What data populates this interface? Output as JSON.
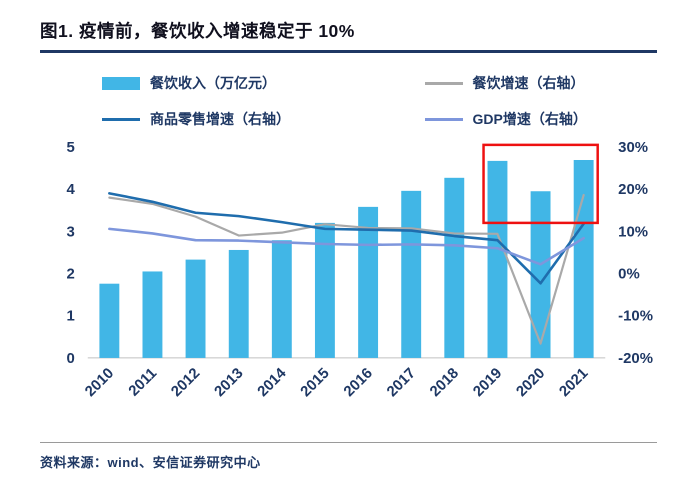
{
  "title": "图1. 疫情前，餐饮收入增速稳定于 10%",
  "source": "资料来源：wind、安信证券研究中心",
  "colors": {
    "bar": "#41b6e6",
    "catering": "#a9a9a9",
    "retail": "#1f6dad",
    "gdp": "#7e96dc",
    "annotation": "#ee1111",
    "axis_text": "#1f3864"
  },
  "legend": [
    {
      "key": "catering-revenue",
      "label": "餐饮收入（万亿元）",
      "type": "bar",
      "color_key": "bar"
    },
    {
      "key": "catering-growth",
      "label": "餐饮增速（右轴）",
      "type": "line",
      "color_key": "catering"
    },
    {
      "key": "retail-growth",
      "label": "商品零售增速（右轴）",
      "type": "line",
      "color_key": "retail"
    },
    {
      "key": "gdp-growth",
      "label": "GDP增速（右轴）",
      "type": "line",
      "color_key": "gdp"
    }
  ],
  "chart_data": {
    "type": "bar+line combo",
    "categories": [
      "2010",
      "2011",
      "2012",
      "2013",
      "2014",
      "2015",
      "2016",
      "2017",
      "2018",
      "2019",
      "2020",
      "2021"
    ],
    "bar_series": {
      "name": "餐饮收入（万亿元）",
      "axis": "left",
      "values": [
        1.76,
        2.05,
        2.33,
        2.56,
        2.79,
        3.2,
        3.58,
        3.96,
        4.27,
        4.67,
        3.95,
        4.69
      ]
    },
    "line_series": [
      {
        "key": "catering-growth",
        "name": "餐饮增速（右轴）",
        "axis": "right",
        "color_key": "catering",
        "width": 2.2,
        "values": [
          18.0,
          16.5,
          13.5,
          9.0,
          9.7,
          11.7,
          10.8,
          10.7,
          9.5,
          9.4,
          -16.6,
          18.6
        ]
      },
      {
        "key": "retail-growth",
        "name": "商品零售增速（右轴）",
        "axis": "right",
        "color_key": "retail",
        "width": 2.6,
        "values": [
          19.0,
          17.0,
          14.4,
          13.6,
          12.2,
          10.6,
          10.4,
          10.2,
          8.9,
          7.9,
          -2.3,
          11.8
        ]
      },
      {
        "key": "gdp-growth",
        "name": "GDP增速（右轴）",
        "axis": "right",
        "color_key": "gdp",
        "width": 2.6,
        "values": [
          10.6,
          9.5,
          7.9,
          7.8,
          7.4,
          7.0,
          6.8,
          6.9,
          6.7,
          6.0,
          2.2,
          8.4
        ]
      }
    ],
    "left_axis": {
      "min": 0,
      "max": 5,
      "ticks": [
        0,
        1,
        2,
        3,
        4,
        5
      ]
    },
    "right_axis": {
      "min": -20,
      "max": 30,
      "tick_values": [
        -20,
        -10,
        0,
        10,
        20,
        30
      ],
      "ticks": [
        "-20%",
        "-10%",
        "0%",
        "10%",
        "20%",
        "30%"
      ]
    },
    "annotation_box": {
      "from": "2019",
      "to": "2021",
      "right_min": 12,
      "right_max": 30.5
    },
    "legend_position": "top",
    "grid": false
  }
}
